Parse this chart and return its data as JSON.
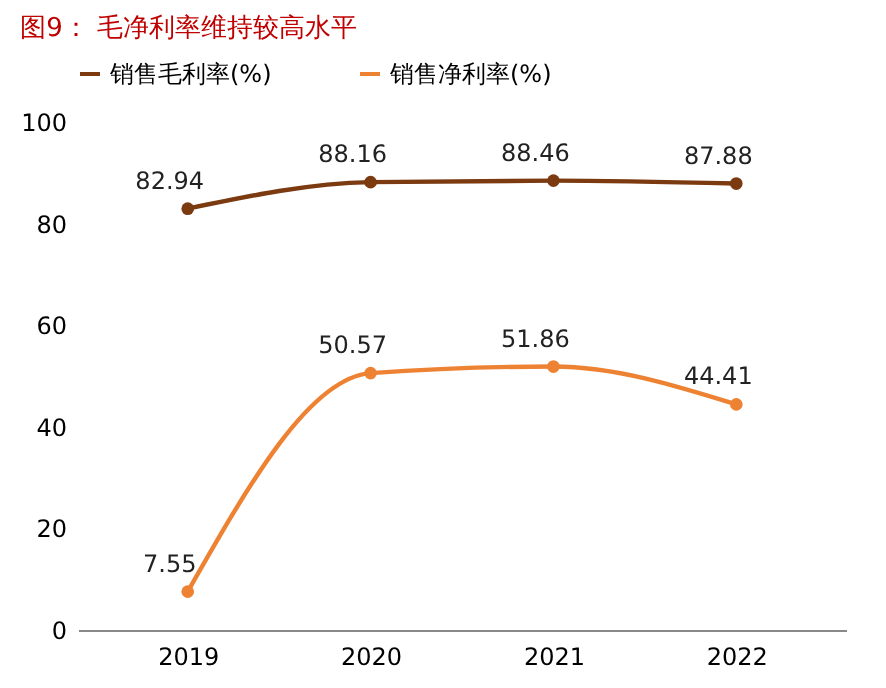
{
  "chart_data": {
    "type": "line",
    "title": "图9：  毛净利率维持较高水平",
    "categories": [
      "2019",
      "2020",
      "2021",
      "2022"
    ],
    "series": [
      {
        "name": "销售毛利率(%)",
        "color": "#7b3a10",
        "values": [
          82.94,
          88.16,
          88.46,
          87.88
        ]
      },
      {
        "name": "销售净利率(%)",
        "color": "#ee8233",
        "values": [
          7.55,
          50.57,
          51.86,
          44.41
        ]
      }
    ],
    "ylim": [
      0,
      100
    ],
    "yticks": [
      0,
      20,
      40,
      60,
      80,
      100
    ],
    "grid": false,
    "legend": "top",
    "marker": "circle",
    "line_style": "solid",
    "data_labels": true
  }
}
